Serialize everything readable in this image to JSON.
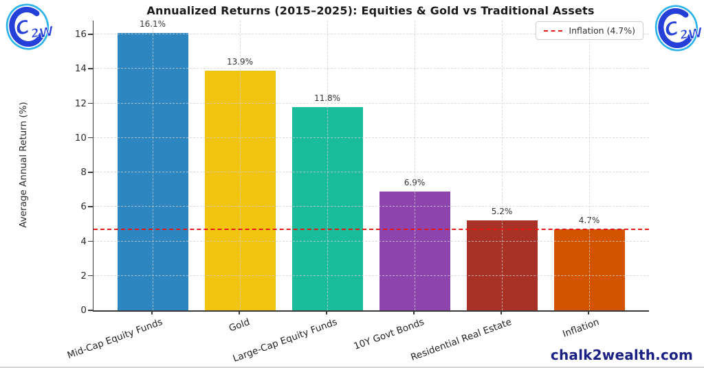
{
  "page": {
    "watermark": "chalk2wealth.com",
    "brand": "C2W"
  },
  "chart_data": {
    "type": "bar",
    "title": "Annualized Returns (2015–2025): Equities & Gold vs Traditional Assets",
    "xlabel": "",
    "ylabel": "Average Annual Return (%)",
    "categories": [
      "Mid-Cap Equity Funds",
      "Gold",
      "Large-Cap Equity Funds",
      "10Y Govt Bonds",
      "Residential Real Estate",
      "Inflation"
    ],
    "values": [
      16.1,
      13.9,
      11.8,
      6.9,
      5.2,
      4.7
    ],
    "value_labels": [
      "16.1%",
      "13.9%",
      "11.8%",
      "6.9%",
      "5.2%",
      "4.7%"
    ],
    "bar_colors": [
      "#2e86c1",
      "#f1c40f",
      "#1abc9c",
      "#8e44ad",
      "#a93226",
      "#d35400"
    ],
    "yticks": [
      0,
      2,
      4,
      6,
      8,
      10,
      12,
      14,
      16
    ],
    "ylim": [
      0,
      16.8
    ],
    "grid": "dashed horizontal and vertical, light gray",
    "legend_position": "upper right",
    "reference_line": {
      "value": 4.7,
      "color": "#e81717",
      "style": "dashed",
      "legend_label": "Inflation (4.7%)"
    }
  }
}
